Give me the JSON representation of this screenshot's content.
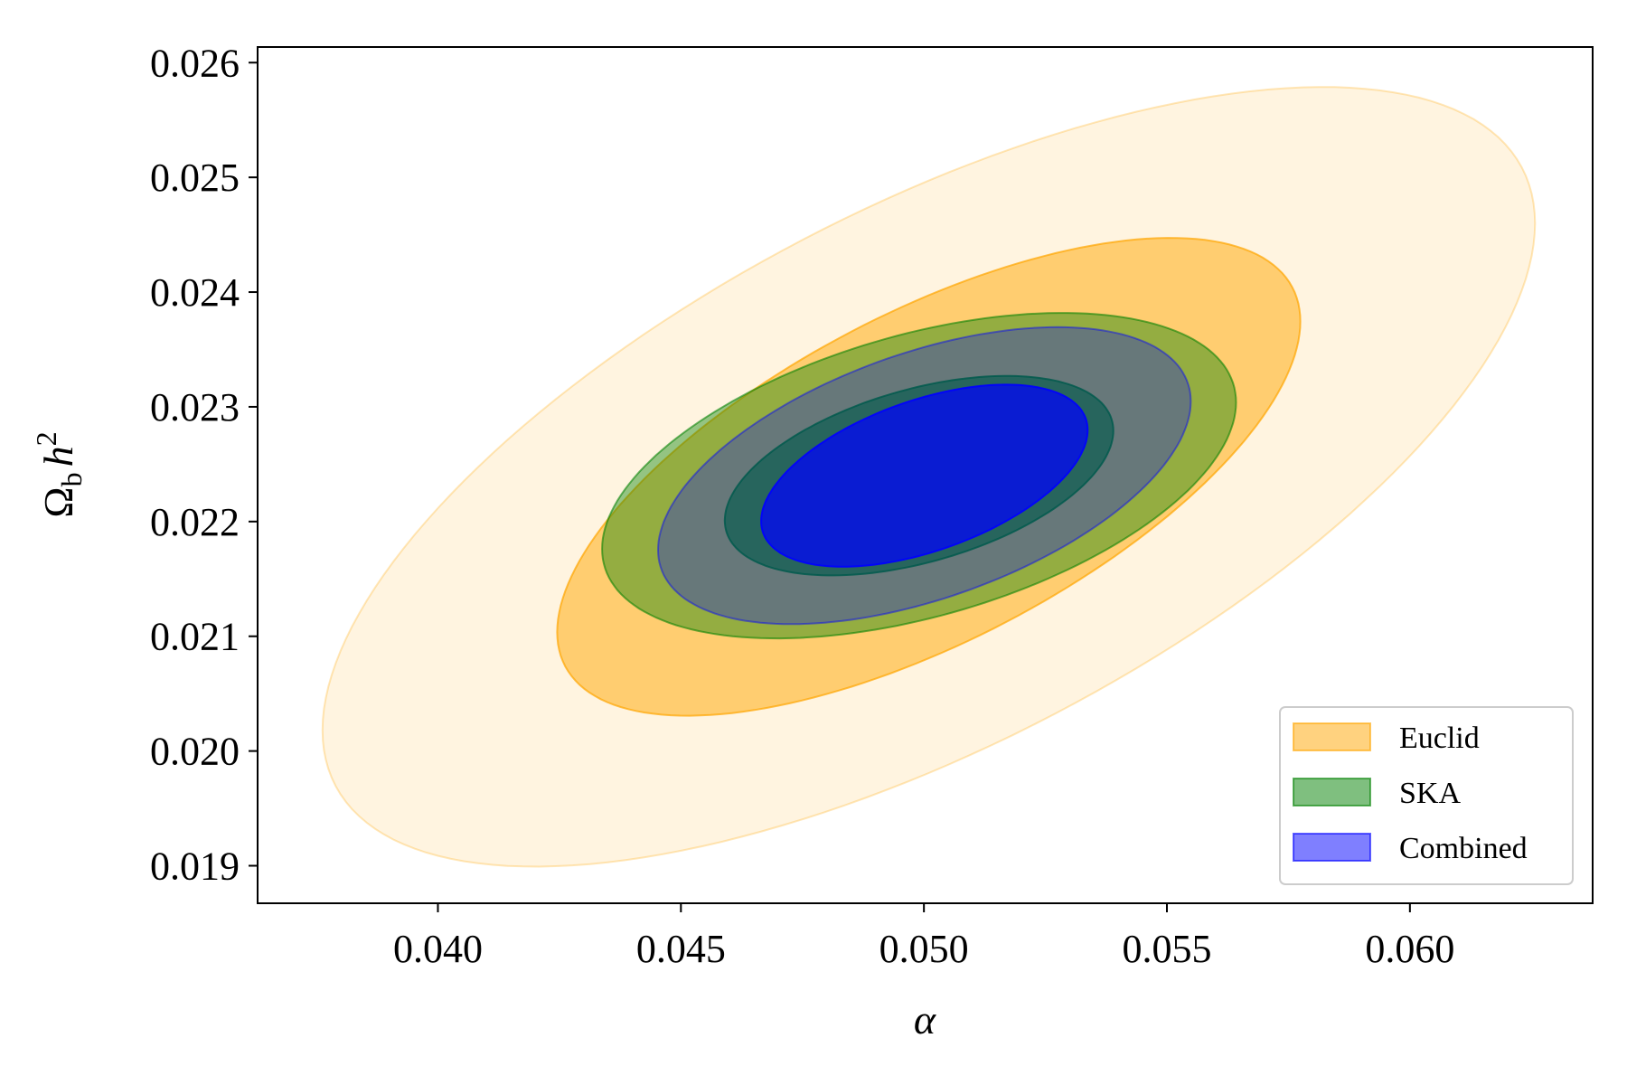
{
  "chart_data": {
    "type": "contour",
    "title": "",
    "xlabel": "α",
    "ylabel_main": "Ω",
    "ylabel_sub": "b",
    "ylabel_h": "h",
    "ylabel_sup": "2",
    "xlim": [
      0.03629,
      0.06376
    ],
    "ylim": [
      0.018673,
      0.026136
    ],
    "xticks": [
      0.04,
      0.045,
      0.05,
      0.055,
      0.06
    ],
    "xtick_labels": [
      "0.040",
      "0.045",
      "0.050",
      "0.055",
      "0.060"
    ],
    "yticks": [
      0.019,
      0.02,
      0.021,
      0.022,
      0.023,
      0.024,
      0.025,
      0.026
    ],
    "ytick_labels": [
      "0.019",
      "0.020",
      "0.021",
      "0.022",
      "0.023",
      "0.024",
      "0.025",
      "0.026"
    ],
    "grid": false,
    "legend_position": "bottom-right",
    "contour_levels_sigma_scale": {
      "1sigma": 1.52,
      "2sigma": 2.48
    },
    "series": [
      {
        "name": "Euclid",
        "color": "#ffa500",
        "center": [
          0.0501,
          0.02239
        ],
        "sigma": [
          0.00503,
          0.00137
        ],
        "rho": 0.65,
        "alpha_outer": 0.12,
        "alpha_inner": 0.5
      },
      {
        "name": "SKA",
        "color": "#008000",
        "center": [
          0.0499,
          0.0224
        ],
        "sigma": [
          0.00263,
          0.000572
        ],
        "rho": 0.45,
        "alpha_outer": 0.42,
        "alpha_inner": 0.62
      },
      {
        "name": "Combined",
        "color": "#0000ff",
        "center": [
          0.05001,
          0.0224
        ],
        "sigma": [
          0.00221,
          0.000522
        ],
        "rho": 0.5,
        "alpha_outer": 0.3,
        "alpha_inner": 0.72
      }
    ],
    "legend": [
      "Euclid",
      "SKA",
      "Combined"
    ]
  }
}
